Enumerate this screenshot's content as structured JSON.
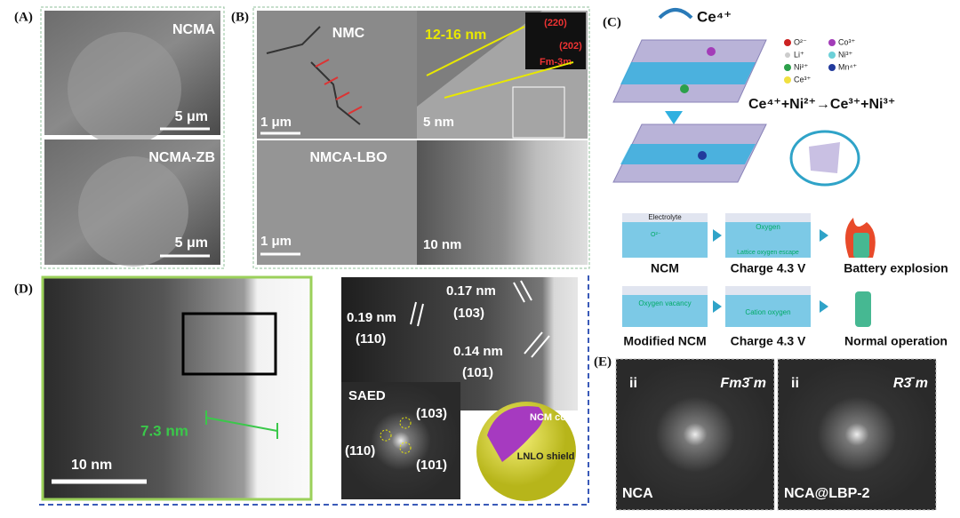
{
  "panels": {
    "a": {
      "label": "(A)",
      "top": {
        "name": "NCMA",
        "scale": "5 μm"
      },
      "bottom": {
        "name": "NCMA-ZB",
        "scale": "5 μm"
      }
    },
    "b": {
      "label": "(B)",
      "top_left": {
        "name": "NMC",
        "scale": "1 μm"
      },
      "top_right": {
        "spacing": "12-16 nm",
        "spot1": "(220)",
        "spot2": "(202)",
        "phase": "Fm-3m",
        "scale": "5 nm"
      },
      "bottom_left": {
        "name": "NMCA-LBO",
        "scale": "1 μm"
      },
      "bottom_right": {
        "scale": "10 nm"
      }
    },
    "c": {
      "label": "(C)",
      "ion": "Ce⁴⁺",
      "legend": [
        "O²⁻",
        "Li⁺",
        "Ni²⁺",
        "Ce³⁺",
        "Co³⁺",
        "Ni³⁺",
        "Mn⁴⁺"
      ],
      "equation": "Ce⁴⁺+Ni²⁺→Ce³⁺+Ni³⁺",
      "row1": {
        "electrolyte": "Electrolyte",
        "o2": "O²⁻",
        "oxygen": "Oxygen",
        "escape": "Lattice oxygen escape",
        "labels": [
          "NCM",
          "Charge 4.3 V",
          "Battery explosion"
        ]
      },
      "row2": {
        "vacancy": "Oxygen vacancy",
        "cation": "Cation oxygen",
        "labels": [
          "Modified NCM",
          "Charge 4.3 V",
          "Normal operation"
        ]
      }
    },
    "d": {
      "label": "(D)",
      "thickness": "7.3 nm",
      "scale": "10 nm",
      "hrtem": [
        {
          "d": "0.19 nm",
          "hkl": "(110)"
        },
        {
          "d": "0.17 nm",
          "hkl": "(103)"
        },
        {
          "d": "0.14 nm",
          "hkl": "(101)"
        }
      ],
      "saed": {
        "title": "SAED",
        "spots": [
          "(103)",
          "(110)",
          "(101)"
        ]
      },
      "model": {
        "core": "NCM core",
        "shield": "LNLO shield"
      }
    },
    "e": {
      "label": "(E)",
      "left": {
        "tag": "ii",
        "group": "Fm3̄ m",
        "name": "NCA"
      },
      "right": {
        "tag": "ii",
        "group": "R3̄ m",
        "name": "NCA@LBP-2"
      }
    }
  }
}
